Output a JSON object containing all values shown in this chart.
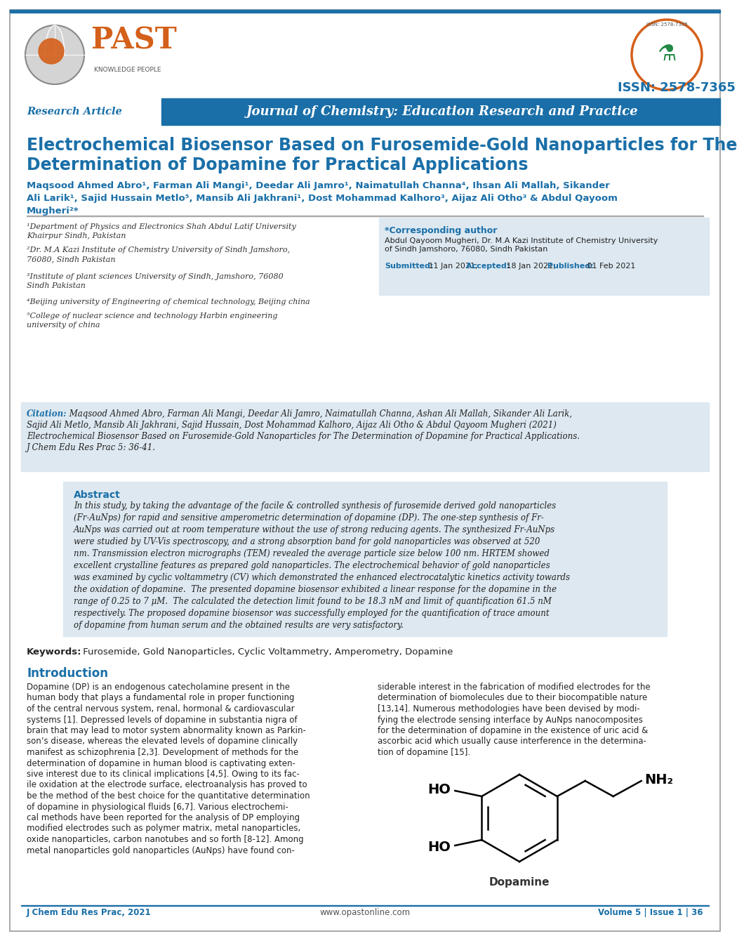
{
  "title_line1": "Electrochemical Biosensor Based on Furosemide-Gold Nanoparticles for The",
  "title_line2": "Determination of Dopamine for Practical Applications",
  "journal_name": "Journal of Chemistry: Education Research and Practice",
  "research_article_label": "Research Article",
  "issn": "ISSN: 2578-7365",
  "affil1a": "¹Department of Physics and Electronics Shah Abdul Latif University",
  "affil1b": "Khairpur Sindh, Pakistan",
  "affil2a": "²Dr. M.A Kazi Institute of Chemistry University of Sindh Jamshoro,",
  "affil2b": "76080, Sindh Pakistan",
  "affil3a": "³Institute of plant sciences University of Sindh, Jamshoro, 76080",
  "affil3b": "Sindh Pakistan",
  "affil4": "⁴Beijing university of Engineering of chemical technology, Beijing china",
  "affil5a": "⁵College of nuclear science and technology Harbin engineering",
  "affil5b": "university of china",
  "corresponding_title": "*Corresponding author",
  "corresponding_line1": "Abdul Qayoom Mugheri, Dr. M.A Kazi Institute of Chemistry University",
  "corresponding_line2": "of Sindh Jamshoro, 76080, Sindh Pakistan",
  "submitted_label": "Submitted:",
  "submitted_date": " 11 Jan 2021;",
  "accepted_label": " Accepted:",
  "accepted_date": " 18 Jan 2021;",
  "published_label": " Published:",
  "published_date": " 01 Feb 2021",
  "citation_label": "Citation:",
  "citation_line1": " Maqsood Ahmed Abro, Farman Ali Mangi, Deedar Ali Jamro, Naimatullah Channa, Ashan Ali Mallah, Sikander Ali Larik,",
  "citation_line2": "Sajid Ali Metlo, Mansib Ali Jakhrani, Sajid Hussain, Dost Mohammad Kalhoro, Aijaz Ali Otho & Abdul Qayoom Mugheri (2021)",
  "citation_line3": "Electrochemical Biosensor Based on Furosemide-Gold Nanoparticles for The Determination of Dopamine for Practical Applications.",
  "citation_line4": "J Chem Edu Res Prac 5: 36-41.",
  "abstract_title": "Abstract",
  "abs_line1": "In this study, by taking the advantage of the facile & controlled synthesis of furosemide derived gold nanoparticles",
  "abs_line2": "(Fr-AuNps) for rapid and sensitive amperometric determination of dopamine (DP). The one-step synthesis of Fr-",
  "abs_line3": "AuNps was carried out at room temperature without the use of strong reducing agents. The synthesized Fr-AuNps",
  "abs_line4": "were studied by UV-Vis spectroscopy, and a strong absorption band for gold nanoparticles was observed at 520",
  "abs_line5": "nm. Transmission electron micrographs (TEM) revealed the average particle size below 100 nm. HRTEM showed",
  "abs_line6": "excellent crystalline features as prepared gold nanoparticles. The electrochemical behavior of gold nanoparticles",
  "abs_line7": "was examined by cyclic voltammetry (CV) which demonstrated the enhanced electrocatalytic kinetics activity towards",
  "abs_line8": "the oxidation of dopamine.  The presented dopamine biosensor exhibited a linear response for the dopamine in the",
  "abs_line9": "range of 0.25 to 7 μM.  The calculated the detection limit found to be 18.3 nM and limit of quantification 61.5 nM",
  "abs_line10": "respectively. The proposed dopamine biosensor was successfully employed for the quantification of trace amount",
  "abs_line11": "of dopamine from human serum and the obtained results are very satisfactory.",
  "keywords_label": "Keywords:",
  "keywords_text": " Furosemide, Gold Nanoparticles, Cyclic Voltammetry, Amperometry, Dopamine",
  "intro_title": "Introduction",
  "col1_lines": [
    "Dopamine (DP) is an endogenous catecholamine present in the",
    "human body that plays a fundamental role in proper functioning",
    "of the central nervous system, renal, hormonal & cardiovascular",
    "systems [1]. Depressed levels of dopamine in substantia nigra of",
    "brain that may lead to motor system abnormality known as Parkin-",
    "son’s disease, whereas the elevated levels of dopamine clinically",
    "manifest as schizophrenia [2,3]. Development of methods for the",
    "determination of dopamine in human blood is captivating exten-",
    "sive interest due to its clinical implications [4,5]. Owing to its fac-",
    "ile oxidation at the electrode surface, electroanalysis has proved to",
    "be the method of the best choice for the quantitative determination",
    "of dopamine in physiological fluids [6,7]. Various electrochemi-",
    "cal methods have been reported for the analysis of DP employing",
    "modified electrodes such as polymer matrix, metal nanoparticles,",
    "oxide nanoparticles, carbon nanotubes and so forth [8-12]. Among",
    "metal nanoparticles gold nanoparticles (AuNps) have found con-"
  ],
  "col2_lines": [
    "siderable interest in the fabrication of modified electrodes for the",
    "determination of biomolecules due to their biocompatible nature",
    "[13,14]. Numerous methodologies have been devised by modi-",
    "fying the electrode sensing interface by AuNps nanocomposites",
    "for the determination of dopamine in the existence of uric acid &",
    "ascorbic acid which usually cause interference in the determina-",
    "tion of dopamine [15]."
  ],
  "footer_left": "J Chem Edu Res Prac, 2021",
  "footer_center": "www.opastonline.com",
  "footer_right": "Volume 5 | Issue 1 | 36",
  "blue": "#1a6fa8",
  "dark_blue": "#1255a0",
  "journal_bg": "#1a6fa8",
  "orange": "#d4601a",
  "author_blue": "#1a6fa8",
  "citation_bg": "#dde8f0",
  "abstract_bg": "#dde8f0",
  "corr_bg": "#dde8f0"
}
